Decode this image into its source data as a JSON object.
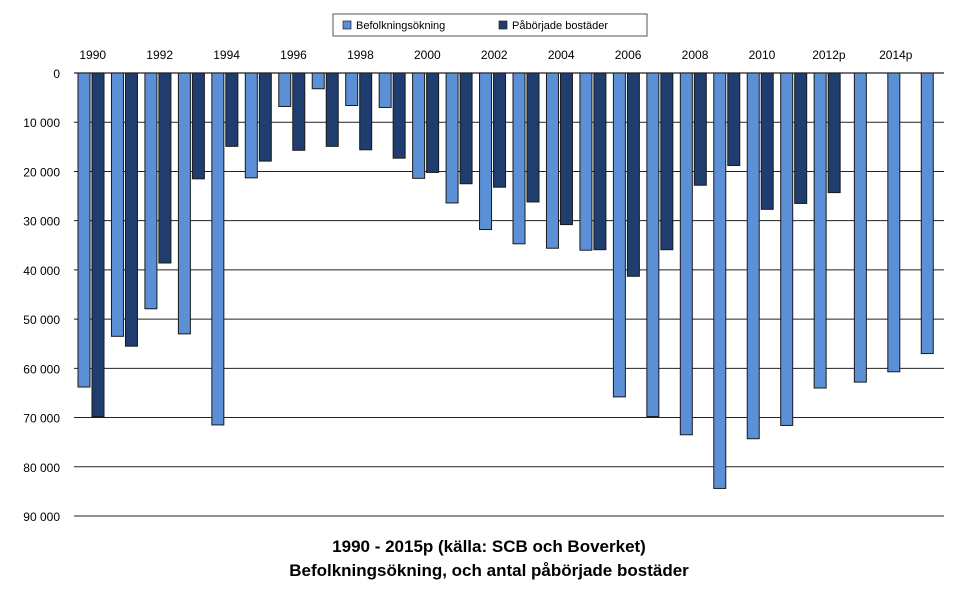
{
  "chart_data": {
    "type": "bar",
    "orientation": "inverted-vertical",
    "title_lines": [
      "Befolkningsökning, och antal påbörjade bostäder",
      "1990 - 2015p (källa: SCB och Boverket)"
    ],
    "legend_position": "top",
    "grid": true,
    "ylim": [
      0,
      90000
    ],
    "yticks": [
      0,
      10000,
      20000,
      30000,
      40000,
      50000,
      60000,
      70000,
      80000,
      90000
    ],
    "ytick_labels": [
      "0",
      "10 000",
      "20 000",
      "30 000",
      "40 000",
      "50 000",
      "60 000",
      "70 000",
      "80 000",
      "90 000"
    ],
    "categories": [
      "1990",
      "1991",
      "1992",
      "1993",
      "1994",
      "1995",
      "1996",
      "1997",
      "1998",
      "1999",
      "2000",
      "2001",
      "2002",
      "2003",
      "2004",
      "2005",
      "2006",
      "2007",
      "2008",
      "2009",
      "2010",
      "2011",
      "2012p",
      "2013p",
      "2014p",
      "2015p"
    ],
    "xtick_labels": [
      "1990",
      "",
      "1992",
      "",
      "1994",
      "",
      "1996",
      "",
      "1998",
      "",
      "2000",
      "",
      "2002",
      "",
      "2004",
      "",
      "2006",
      "",
      "2008",
      "",
      "2010",
      "",
      "2012p",
      "",
      "2014p",
      ""
    ],
    "series": [
      {
        "name": "Befolkningsökning",
        "color": "#5b8fd6",
        "values": [
          63800,
          53500,
          47900,
          53000,
          71500,
          21300,
          6800,
          3200,
          6600,
          7000,
          21400,
          26400,
          31800,
          34700,
          35600,
          36000,
          65800,
          69800,
          73500,
          84400,
          74300,
          71600,
          64000,
          62800,
          60700,
          57000
        ]
      },
      {
        "name": "Påbörjade bostäder",
        "color": "#1f3d6e",
        "values": [
          69800,
          55500,
          38600,
          21500,
          14900,
          17900,
          15700,
          14900,
          15600,
          17300,
          20200,
          22500,
          23200,
          26200,
          30800,
          35900,
          41300,
          35900,
          22800,
          18800,
          27700,
          26500,
          24300,
          null,
          null,
          null
        ]
      }
    ]
  }
}
